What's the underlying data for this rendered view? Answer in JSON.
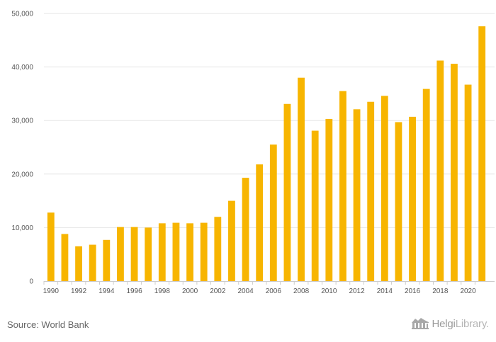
{
  "chart_data": {
    "type": "bar",
    "categories": [
      "1990",
      "1991",
      "1992",
      "1993",
      "1994",
      "1995",
      "1996",
      "1997",
      "1998",
      "1999",
      "2000",
      "2001",
      "2002",
      "2003",
      "2004",
      "2005",
      "2006",
      "2007",
      "2008",
      "2009",
      "2010",
      "2011",
      "2012",
      "2013",
      "2014",
      "2015",
      "2016",
      "2017",
      "2018",
      "2019",
      "2020",
      "2021"
    ],
    "values": [
      12800,
      8800,
      6500,
      6800,
      7700,
      10100,
      10100,
      10000,
      10800,
      10900,
      10800,
      10900,
      12000,
      15000,
      19300,
      21800,
      25500,
      33100,
      38000,
      28100,
      30300,
      35500,
      32100,
      33500,
      34600,
      29700,
      30700,
      35900,
      41200,
      40600,
      36700,
      47600
    ],
    "xtick_labels": [
      "1990",
      "1992",
      "1994",
      "1996",
      "1998",
      "2000",
      "2002",
      "2004",
      "2006",
      "2008",
      "2010",
      "2012",
      "2014",
      "2016",
      "2018",
      "2020"
    ],
    "ytick_labels": [
      "0",
      "10,000",
      "20,000",
      "30,000",
      "40,000",
      "50,000"
    ],
    "ylim": [
      0,
      50000
    ],
    "grid": true,
    "bar_color": "#f7b500",
    "title": "",
    "xlabel": "",
    "ylabel": ""
  },
  "footer": {
    "source": "Source: World Bank",
    "brand_bold": "Helgi",
    "brand_light": "Library."
  },
  "colors": {
    "grid": "#e6e6e6",
    "axis": "#cccccc",
    "text": "#555555"
  }
}
